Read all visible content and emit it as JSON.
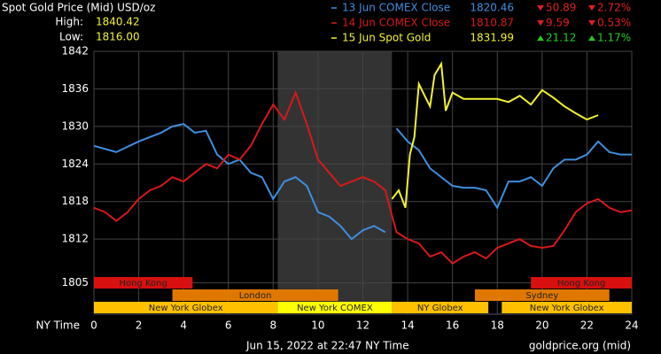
{
  "chart_data": {
    "type": "line",
    "title": "Spot Gold Price (Mid) USD/oz",
    "high_label": "High:",
    "high": "1840.42",
    "low_label": "Low:",
    "low": "1816.00",
    "xlabel": "NY Time",
    "footer_left": "Jun 15, 2022 at 22:47 NY Time",
    "footer_right": "goldprice.org (mid)",
    "xlim": [
      0,
      24
    ],
    "xticks": [
      0,
      2,
      4,
      6,
      8,
      10,
      12,
      14,
      16,
      18,
      20,
      22,
      24
    ],
    "ylim": [
      1800,
      1842
    ],
    "yticks": [
      1842,
      1836,
      1830,
      1824,
      1818,
      1812,
      1805
    ],
    "grid": true,
    "shade": [
      8.2,
      13.3
    ],
    "series": [
      {
        "name": "13 Jun COMEX Close",
        "color": "#3d8fe0",
        "close": "1820.46",
        "change": "50.89",
        "pct": "2.72%",
        "dir": "down",
        "x": [
          0,
          1,
          2,
          3,
          3.5,
          4,
          4.5,
          5,
          5.5,
          6,
          6.5,
          7,
          7.5,
          8,
          8.5,
          9,
          9.5,
          10,
          10.5,
          11,
          11.5,
          12,
          12.5,
          13,
          13.3,
          13.5,
          14,
          14.5,
          15,
          15.5,
          16,
          16.5,
          17,
          17.5,
          18,
          18.5,
          19,
          19.5,
          20,
          20.5,
          21,
          21.5,
          22,
          22.5,
          23,
          23.5,
          24
        ],
        "values": [
          1826.9,
          1825.9,
          1827.6,
          1829,
          1830,
          1830.4,
          1829,
          1829.3,
          1825.5,
          1824,
          1824.7,
          1822.6,
          1821.9,
          1818.4,
          1821.2,
          1821.9,
          1820.5,
          1816.3,
          1815.6,
          1814.1,
          1812,
          1813.4,
          1814.1,
          1813.1,
          null,
          1829.7,
          1827.6,
          1826.2,
          1823.3,
          1821.9,
          1820.5,
          1820.2,
          1820.2,
          1819.8,
          1817,
          1821.2,
          1821.2,
          1821.9,
          1820.5,
          1823.3,
          1824.7,
          1824.7,
          1825.5,
          1827.6,
          1825.9,
          1825.5,
          1825.5
        ]
      },
      {
        "name": "14 Jun COMEX Close",
        "color": "#d81818",
        "close": "1810.87",
        "change": "9.59",
        "pct": "0.53%",
        "dir": "down",
        "x": [
          0,
          0.5,
          1,
          1.5,
          2,
          2.5,
          3,
          3.5,
          4,
          4.5,
          5,
          5.5,
          6,
          6.5,
          7,
          7.5,
          8,
          8.5,
          9,
          9.5,
          10,
          10.5,
          11,
          11.5,
          12,
          12.5,
          13,
          13.5,
          14,
          14.5,
          15,
          15.5,
          16,
          16.5,
          17,
          17.5,
          18,
          18.5,
          19,
          19.5,
          20,
          20.5,
          21,
          21.5,
          22,
          22.5,
          23,
          23.5,
          24
        ],
        "values": [
          1817,
          1816.3,
          1814.9,
          1816.3,
          1818.4,
          1819.8,
          1820.5,
          1821.9,
          1821.2,
          1822.6,
          1824,
          1823.3,
          1825.5,
          1824.7,
          1826.9,
          1830.4,
          1833.5,
          1831.1,
          1835.4,
          1830.4,
          1824.7,
          1822.6,
          1820.5,
          1821.2,
          1821.9,
          1821.2,
          1819.8,
          1813.1,
          1812,
          1811.3,
          1809.2,
          1809.9,
          1808.1,
          1809.2,
          1809.9,
          1808.9,
          1810.6,
          1811.3,
          1812,
          1810.9,
          1810.6,
          1810.9,
          1813.4,
          1816.3,
          1817.7,
          1818.4,
          1817,
          1816.3,
          1816.6
        ]
      },
      {
        "name": "15 Jun Spot Gold",
        "color": "#f2f230",
        "close": "1831.99",
        "change": "21.12",
        "pct": "1.17%",
        "dir": "up",
        "x": [
          13.3,
          13.6,
          13.9,
          14.1,
          14.3,
          14.5,
          14.8,
          15,
          15.2,
          15.5,
          15.7,
          16,
          16.5,
          17,
          18,
          18.5,
          19,
          19.5,
          20,
          20.5,
          21,
          21.5,
          22,
          22.5
        ],
        "values": [
          1818.4,
          1819.8,
          1817,
          1825.5,
          1828.3,
          1836.8,
          1834.6,
          1833.2,
          1838.2,
          1840,
          1832.5,
          1835.4,
          1834.4,
          1834.4,
          1834.4,
          1833.9,
          1834.9,
          1833.5,
          1835.8,
          1834.6,
          1833.2,
          1832.1,
          1831.1,
          1831.8
        ]
      }
    ],
    "session_rows": [
      [
        {
          "label": "Hong Kong",
          "start": 0,
          "end": 4.4,
          "color": "#d81010"
        },
        {
          "label": "Hong Kong",
          "start": 19.5,
          "end": 24,
          "color": "#d81010"
        }
      ],
      [
        {
          "label": "London",
          "start": 3.5,
          "end": 10.9,
          "color": "#e07800"
        },
        {
          "label": "Sydney",
          "start": 17,
          "end": 23,
          "color": "#e07800"
        }
      ],
      [
        {
          "label": "New York Globex",
          "start": 0,
          "end": 8.2,
          "color": "#ffc000"
        },
        {
          "label": "New York COMEX",
          "start": 8.2,
          "end": 13.3,
          "color": "#ffff00"
        },
        {
          "label": "NY Globex",
          "start": 13.3,
          "end": 17.6,
          "color": "#ffc000"
        },
        {
          "label": "New York Globex",
          "start": 18.2,
          "end": 24,
          "color": "#ffc000"
        }
      ]
    ]
  }
}
